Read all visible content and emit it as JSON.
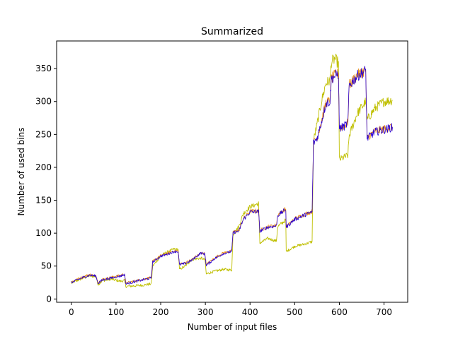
{
  "chart_data": {
    "type": "line",
    "title": "Summarized",
    "xlabel": "Number of input files",
    "ylabel": "Number of used bins",
    "xlim": [
      -33,
      753
    ],
    "ylim": [
      -5,
      392
    ],
    "xticks": [
      0,
      100,
      200,
      300,
      400,
      500,
      600,
      700
    ],
    "yticks": [
      0,
      50,
      100,
      150,
      200,
      250,
      300,
      350
    ],
    "grid": false,
    "legend": "none",
    "series": [
      {
        "color": "#bfbf00",
        "points": [
          [
            0,
            24
          ],
          [
            20,
            30
          ],
          [
            40,
            35
          ],
          [
            55,
            34
          ],
          [
            60,
            22
          ],
          [
            70,
            28
          ],
          [
            90,
            30
          ],
          [
            110,
            27
          ],
          [
            119,
            28
          ],
          [
            122,
            19
          ],
          [
            140,
            20
          ],
          [
            160,
            21
          ],
          [
            179,
            23
          ],
          [
            182,
            50
          ],
          [
            200,
            65
          ],
          [
            210,
            70
          ],
          [
            230,
            76
          ],
          [
            239,
            75
          ],
          [
            242,
            45
          ],
          [
            255,
            50
          ],
          [
            270,
            60
          ],
          [
            290,
            62
          ],
          [
            299,
            60
          ],
          [
            302,
            38
          ],
          [
            320,
            42
          ],
          [
            340,
            45
          ],
          [
            359,
            44
          ],
          [
            362,
            98
          ],
          [
            375,
            110
          ],
          [
            385,
            130
          ],
          [
            400,
            140
          ],
          [
            419,
            145
          ],
          [
            422,
            85
          ],
          [
            440,
            92
          ],
          [
            459,
            88
          ],
          [
            462,
            110
          ],
          [
            480,
            120
          ],
          [
            481,
            72
          ],
          [
            500,
            80
          ],
          [
            520,
            83
          ],
          [
            539,
            87
          ],
          [
            542,
            240
          ],
          [
            550,
            265
          ],
          [
            560,
            300
          ],
          [
            570,
            328
          ],
          [
            579,
            332
          ],
          [
            582,
            360
          ],
          [
            590,
            365
          ],
          [
            598,
            358
          ],
          [
            600,
            212
          ],
          [
            610,
            215
          ],
          [
            619,
            218
          ],
          [
            622,
            248
          ],
          [
            640,
            282
          ],
          [
            659,
            300
          ],
          [
            662,
            272
          ],
          [
            680,
            290
          ],
          [
            700,
            300
          ],
          [
            719,
            302
          ]
        ]
      },
      {
        "color": "#e8880a",
        "points": [
          [
            0,
            26
          ],
          [
            20,
            32
          ],
          [
            40,
            37
          ],
          [
            55,
            35
          ],
          [
            60,
            25
          ],
          [
            70,
            30
          ],
          [
            90,
            33
          ],
          [
            110,
            36
          ],
          [
            119,
            38
          ],
          [
            122,
            24
          ],
          [
            140,
            27
          ],
          [
            160,
            30
          ],
          [
            179,
            33
          ],
          [
            182,
            57
          ],
          [
            200,
            66
          ],
          [
            210,
            68
          ],
          [
            230,
            73
          ],
          [
            239,
            73
          ],
          [
            242,
            53
          ],
          [
            255,
            55
          ],
          [
            270,
            60
          ],
          [
            290,
            70
          ],
          [
            299,
            69
          ],
          [
            302,
            52
          ],
          [
            320,
            62
          ],
          [
            340,
            70
          ],
          [
            359,
            73
          ],
          [
            362,
            102
          ],
          [
            375,
            104
          ],
          [
            385,
            122
          ],
          [
            400,
            133
          ],
          [
            419,
            134
          ],
          [
            422,
            104
          ],
          [
            440,
            110
          ],
          [
            459,
            112
          ],
          [
            462,
            128
          ],
          [
            480,
            137
          ],
          [
            481,
            110
          ],
          [
            500,
            122
          ],
          [
            520,
            128
          ],
          [
            539,
            133
          ],
          [
            542,
            238
          ],
          [
            550,
            245
          ],
          [
            560,
            270
          ],
          [
            570,
            298
          ],
          [
            579,
            301
          ],
          [
            582,
            335
          ],
          [
            590,
            340
          ],
          [
            598,
            343
          ],
          [
            600,
            260
          ],
          [
            610,
            263
          ],
          [
            619,
            268
          ],
          [
            622,
            325
          ],
          [
            640,
            340
          ],
          [
            659,
            348
          ],
          [
            662,
            245
          ],
          [
            680,
            255
          ],
          [
            700,
            258
          ],
          [
            719,
            262
          ]
        ]
      },
      {
        "color": "#2a00d4",
        "points": [
          [
            0,
            25
          ],
          [
            20,
            31
          ],
          [
            40,
            36
          ],
          [
            55,
            35
          ],
          [
            60,
            24
          ],
          [
            70,
            29
          ],
          [
            90,
            32
          ],
          [
            110,
            35
          ],
          [
            119,
            37
          ],
          [
            122,
            23
          ],
          [
            140,
            26
          ],
          [
            160,
            29
          ],
          [
            179,
            32
          ],
          [
            182,
            56
          ],
          [
            200,
            65
          ],
          [
            210,
            67
          ],
          [
            230,
            72
          ],
          [
            239,
            72
          ],
          [
            242,
            52
          ],
          [
            255,
            54
          ],
          [
            270,
            59
          ],
          [
            290,
            70
          ],
          [
            299,
            68
          ],
          [
            302,
            51
          ],
          [
            320,
            61
          ],
          [
            340,
            69
          ],
          [
            359,
            72
          ],
          [
            362,
            101
          ],
          [
            375,
            103
          ],
          [
            385,
            121
          ],
          [
            400,
            132
          ],
          [
            419,
            133
          ],
          [
            422,
            103
          ],
          [
            440,
            109
          ],
          [
            459,
            111
          ],
          [
            462,
            127
          ],
          [
            480,
            136
          ],
          [
            481,
            109
          ],
          [
            500,
            121
          ],
          [
            520,
            127
          ],
          [
            539,
            132
          ],
          [
            542,
            237
          ],
          [
            550,
            244
          ],
          [
            560,
            269
          ],
          [
            570,
            297
          ],
          [
            579,
            300
          ],
          [
            582,
            334
          ],
          [
            590,
            339
          ],
          [
            598,
            342
          ],
          [
            600,
            259
          ],
          [
            610,
            262
          ],
          [
            619,
            267
          ],
          [
            622,
            324
          ],
          [
            640,
            339
          ],
          [
            659,
            347
          ],
          [
            662,
            244
          ],
          [
            680,
            254
          ],
          [
            700,
            257
          ],
          [
            719,
            261
          ]
        ]
      }
    ]
  }
}
